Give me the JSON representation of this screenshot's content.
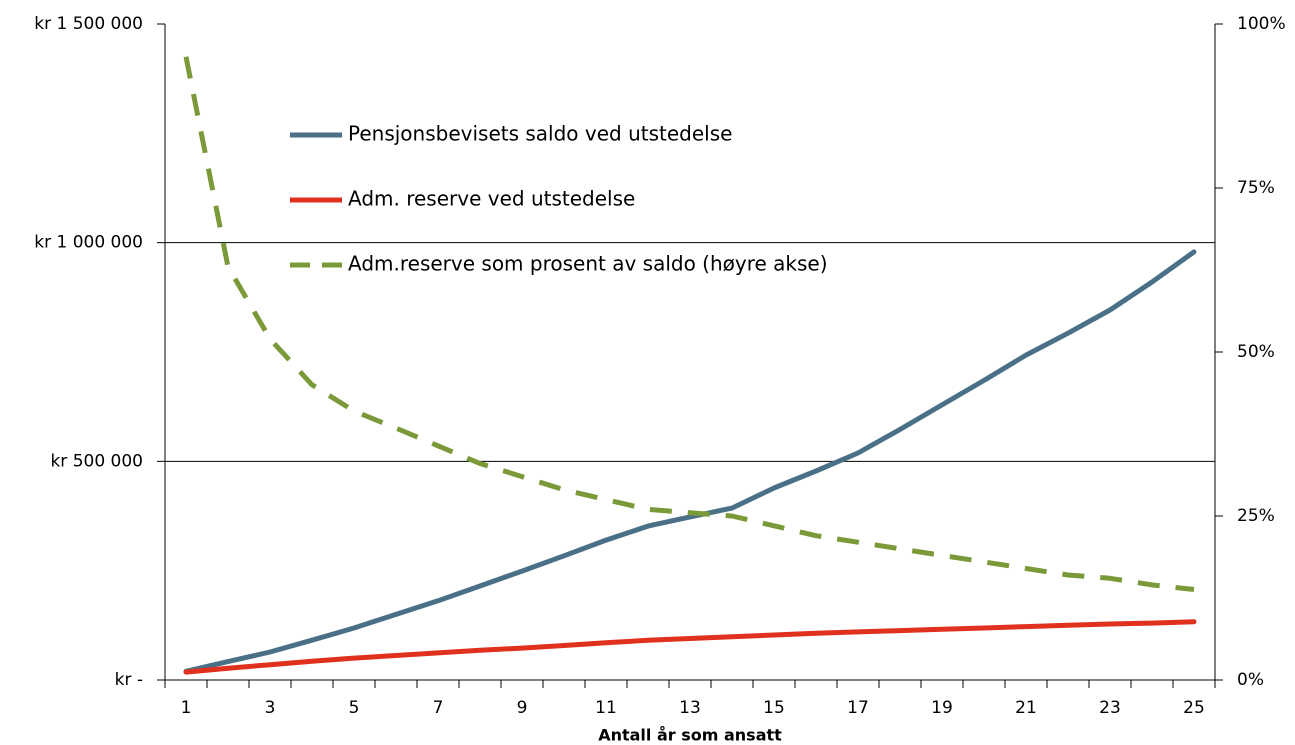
{
  "chart_data": {
    "type": "line",
    "x_label": "Antall år som ansatt",
    "categories": [
      1,
      null,
      3,
      null,
      5,
      null,
      7,
      null,
      9,
      null,
      11,
      null,
      13,
      null,
      15,
      null,
      17,
      null,
      19,
      null,
      21,
      null,
      23,
      null,
      25
    ],
    "ylim": [
      0,
      1500000
    ],
    "yticks": [
      {
        "value": 0,
        "label": "kr -"
      },
      {
        "value": 500000,
        "label": "kr 500 000"
      },
      {
        "value": 1000000,
        "label": "kr 1 000 000"
      },
      {
        "value": 1500000,
        "label": "kr 1 500 000"
      }
    ],
    "y2lim": [
      0,
      100
    ],
    "y2ticks": [
      {
        "value": 0,
        "label": "0%"
      },
      {
        "value": 25,
        "label": "25%"
      },
      {
        "value": 50,
        "label": "50%"
      },
      {
        "value": 75,
        "label": "75%"
      },
      {
        "value": 100,
        "label": "100%"
      }
    ],
    "grid": true,
    "legend": "upper left",
    "series": [
      {
        "name": "Pensjonsbevisets saldo ved utstedelse",
        "color": "#4a7088",
        "values": [
          20000,
          42000,
          64000,
          91000,
          119000,
          150000,
          181000,
          215000,
          249000,
          284000,
          320000,
          352000,
          373000,
          393000,
          439000,
          478000,
          519000,
          573000,
          629000,
          685000,
          743000,
          793000,
          846000,
          910000,
          979000
        ]
      },
      {
        "name": "Adm. reserve ved utstedelse",
        "color": "#e0301e",
        "values": [
          18000,
          27000,
          35000,
          43000,
          50000,
          56000,
          62000,
          68000,
          73000,
          79000,
          85000,
          91000,
          95000,
          99000,
          103000,
          107000,
          110000,
          113000,
          116000,
          119000,
          122000,
          125000,
          128000,
          130000,
          133000
        ]
      },
      {
        "name": "Adm.reserve som prosent av saldo (høyre akse)",
        "color": "#7a9a3a",
        "dashed": true,
        "axis": "y2",
        "values": [
          95,
          63,
          52,
          45,
          41,
          38.4,
          35.7,
          33,
          31,
          29,
          27.5,
          26,
          25.5,
          25,
          23.5,
          22,
          21,
          20,
          19,
          18,
          17,
          16,
          15.5,
          14.5,
          13.8
        ]
      }
    ]
  }
}
